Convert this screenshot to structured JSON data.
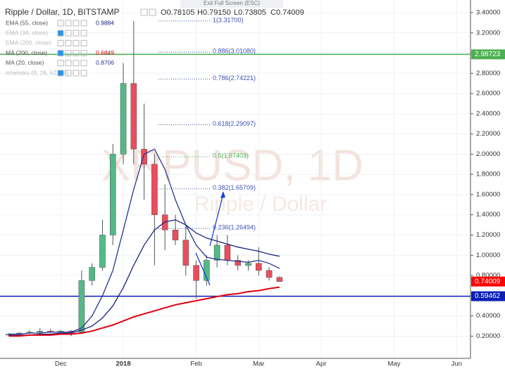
{
  "chart_data": {
    "type": "candlestick",
    "title": "Ripple / Dollar, 1D, BITSTAMP",
    "ohlc_text": [
      "O0.78105",
      "H0.79150",
      "L0.73805",
      "C0.74009"
    ],
    "fullscreen_hint": "Exit Full Screen (ESC)",
    "watermark": [
      "XRPUSD, 1D",
      "Ripple / Dollar"
    ],
    "categories": [
      null,
      null,
      null,
      null,
      null,
      "Dec",
      null,
      null,
      null,
      null,
      null,
      "2018",
      null,
      null,
      null,
      null,
      null,
      null,
      "Feb",
      null,
      null,
      null,
      null,
      null,
      "Mar",
      null,
      null,
      null,
      null,
      null,
      "Apr",
      null,
      null,
      null,
      null,
      null,
      null,
      "May",
      null,
      null,
      null,
      null,
      null,
      "Jun",
      null,
      null,
      null
    ],
    "candles": {
      "up_color": "#53b987",
      "down_color": "#eb4d5c",
      "open": [
        0.21,
        0.22,
        0.23,
        0.24,
        0.25,
        0.24,
        0.25,
        0.24,
        0.75,
        0.88,
        1.2,
        2.0,
        2.7,
        2.05,
        1.9,
        1.4,
        1.25,
        1.15,
        0.9,
        0.75,
        0.95,
        1.1,
        0.95,
        0.9,
        0.92,
        0.85,
        0.78105,
        null,
        null,
        null,
        null,
        null,
        null,
        null,
        null,
        null,
        null,
        null,
        null,
        null,
        null,
        null,
        null,
        null,
        null,
        null,
        null
      ],
      "high": [
        0.23,
        0.24,
        0.26,
        0.28,
        0.27,
        0.26,
        0.26,
        0.85,
        0.92,
        1.35,
        2.1,
        2.9,
        3.317,
        2.5,
        2.0,
        1.7,
        1.4,
        1.3,
        0.95,
        1.0,
        1.2,
        1.2,
        1.0,
        0.95,
        1.08,
        0.88,
        0.7915,
        null,
        null,
        null,
        null,
        null,
        null,
        null,
        null,
        null,
        null,
        null,
        null,
        null,
        null,
        null,
        null,
        null,
        null,
        null,
        null
      ],
      "low": [
        0.2,
        0.2,
        0.22,
        0.22,
        0.23,
        0.22,
        0.2,
        0.23,
        0.7,
        0.85,
        1.1,
        1.9,
        1.9,
        1.55,
        0.9,
        1.05,
        1.1,
        0.8,
        0.57,
        0.7,
        0.88,
        0.9,
        0.85,
        0.85,
        0.8,
        0.75,
        0.73805,
        null,
        null,
        null,
        null,
        null,
        null,
        null,
        null,
        null,
        null,
        null,
        null,
        null,
        null,
        null,
        null,
        null,
        null,
        null,
        null
      ],
      "close": [
        0.22,
        0.23,
        0.24,
        0.25,
        0.24,
        0.25,
        0.24,
        0.75,
        0.88,
        1.2,
        2.0,
        2.7,
        2.05,
        1.9,
        1.4,
        1.25,
        1.15,
        0.9,
        0.75,
        0.95,
        1.1,
        0.95,
        0.9,
        0.92,
        0.85,
        0.78,
        0.74009,
        null,
        null,
        null,
        null,
        null,
        null,
        null,
        null,
        null,
        null,
        null,
        null,
        null,
        null,
        null,
        null,
        null,
        null,
        null,
        null
      ]
    },
    "series": [
      {
        "name": "EMA (55, close)",
        "value_label": "0.9884",
        "color": "#1a237e",
        "values": [
          0.21,
          0.21,
          0.21,
          0.22,
          0.22,
          0.23,
          0.23,
          0.26,
          0.3,
          0.38,
          0.5,
          0.68,
          0.9,
          1.1,
          1.25,
          1.33,
          1.35,
          1.3,
          1.22,
          1.17,
          1.14,
          1.11,
          1.08,
          1.06,
          1.04,
          1.01,
          0.99,
          null,
          null,
          null,
          null,
          null,
          null,
          null,
          null,
          null,
          null,
          null,
          null,
          null,
          null,
          null,
          null,
          null,
          null,
          null,
          null
        ]
      },
      {
        "name": "EMA (34, close)",
        "hidden": true
      },
      {
        "name": "EMA (200, close)",
        "hidden": true
      },
      {
        "name": "MA (200, close)",
        "value_label": "0.6849",
        "color": "#e3000f",
        "values": [
          0.2,
          0.2,
          0.21,
          0.21,
          0.21,
          0.22,
          0.22,
          0.23,
          0.25,
          0.28,
          0.31,
          0.35,
          0.39,
          0.42,
          0.45,
          0.48,
          0.51,
          0.53,
          0.55,
          0.57,
          0.59,
          0.61,
          0.62,
          0.64,
          0.65,
          0.67,
          0.685,
          null,
          null,
          null,
          null,
          null,
          null,
          null,
          null,
          null,
          null,
          null,
          null,
          null,
          null,
          null,
          null,
          null,
          null,
          null,
          null
        ]
      },
      {
        "name": "MA (20, close)",
        "value_label": "0.8706",
        "color": "#283593",
        "values": [
          0.22,
          0.22,
          0.23,
          0.23,
          0.24,
          0.24,
          0.24,
          0.28,
          0.4,
          0.6,
          0.85,
          1.25,
          1.65,
          2.0,
          2.05,
          1.85,
          1.55,
          1.3,
          1.1,
          0.98,
          0.96,
          0.95,
          0.94,
          0.93,
          0.95,
          0.92,
          0.87,
          null,
          null,
          null,
          null,
          null,
          null,
          null,
          null,
          null,
          null,
          null,
          null,
          null,
          null,
          null,
          null,
          null,
          null,
          null,
          null
        ]
      },
      {
        "name": "Ichimoku (9, 26, 52, 26)",
        "hidden": true
      }
    ],
    "fib_levels": [
      {
        "value": 3.317,
        "label": "1(3.31700)",
        "color": "#3f51b5"
      },
      {
        "value": 3.0108,
        "label": "0.886(3.01080)",
        "color": "#3f51b5"
      },
      {
        "value": 2.74221,
        "label": "0.786(2.74221)",
        "color": "#3f51b5"
      },
      {
        "value": 2.29097,
        "label": "0.618(2.29097)",
        "color": "#3f51b5"
      },
      {
        "value": 1.97403,
        "label": "0.5(1.97403)",
        "color": "#4caf50"
      },
      {
        "value": 1.65709,
        "label": "0.382(1.65709)",
        "color": "#3f51b5"
      },
      {
        "value": 1.26494,
        "label": "0.236(1.26494)",
        "color": "#3f51b5"
      }
    ],
    "price_lines": [
      {
        "value": 2.98723,
        "color": "#4caf50"
      },
      {
        "value": 0.74009,
        "color": "#ff0000",
        "badge_only": true
      },
      {
        "value": 0.59462,
        "color": "#0d1fb5"
      }
    ],
    "ylim": [
      -0.02,
      3.525
    ],
    "yticks": [
      {
        "value": 0.2,
        "label": "0.20000"
      },
      {
        "value": 0.4,
        "label": "0.40000"
      },
      {
        "value": 0.6,
        "label": "0.60000"
      },
      {
        "value": 0.8,
        "label": "0.80000"
      },
      {
        "value": 1.0,
        "label": "1.00000"
      },
      {
        "value": 1.2,
        "label": "1.20000"
      },
      {
        "value": 1.4,
        "label": "1.40000"
      },
      {
        "value": 1.6,
        "label": "1.60000"
      },
      {
        "value": 1.8,
        "label": "1.80000"
      },
      {
        "value": 2.0,
        "label": "2.00000"
      },
      {
        "value": 2.2,
        "label": "2.20000"
      },
      {
        "value": 2.4,
        "label": "2.40000"
      },
      {
        "value": 2.6,
        "label": "2.60000"
      },
      {
        "value": 2.8,
        "label": "2.80000"
      },
      {
        "value": 3.0,
        "label": "3.00000"
      },
      {
        "value": 3.2,
        "label": "3.20000"
      },
      {
        "value": 3.4,
        "label": "3.40000"
      }
    ],
    "grid": true
  }
}
